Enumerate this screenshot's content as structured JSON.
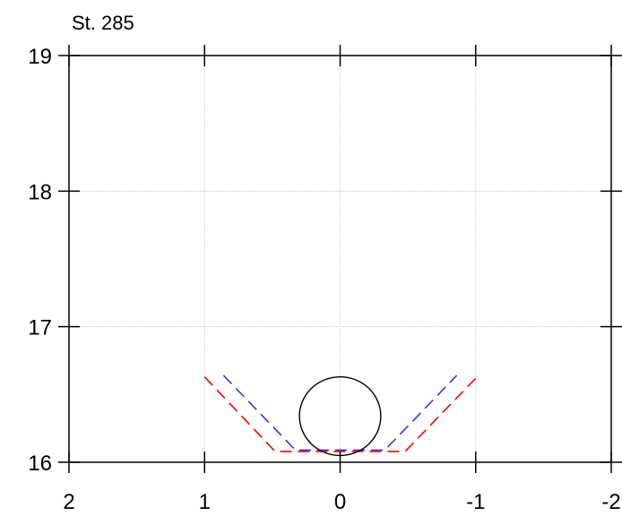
{
  "chart_data": {
    "type": "line",
    "title": "St. 285",
    "xlabel": "",
    "ylabel": "",
    "xlim": [
      2,
      -2
    ],
    "ylim": [
      16,
      19
    ],
    "x_ticks": [
      2,
      1,
      0,
      -1,
      -2
    ],
    "x_tick_labels": [
      "2",
      "1",
      "0",
      "-1",
      "-2"
    ],
    "y_ticks": [
      16,
      17,
      18,
      19
    ],
    "y_tick_labels": [
      "16",
      "17",
      "18",
      "19"
    ],
    "grid": true,
    "series": [
      {
        "style": "dashed",
        "color": "#3333ff",
        "x": [
          0.86,
          0.33,
          -0.33,
          -0.86
        ],
        "y": [
          16.64,
          16.09,
          16.09,
          16.64
        ]
      },
      {
        "style": "dashed",
        "color": "#ff0000",
        "x": [
          1.0,
          0.48,
          -0.48,
          -1.0
        ],
        "y": [
          16.63,
          16.08,
          16.08,
          16.62
        ]
      },
      {
        "style": "solid",
        "color": "#000000",
        "shape": "circle",
        "center": [
          0,
          16.34
        ],
        "radius_x": 0.3,
        "radius_y": 0.29
      }
    ]
  }
}
